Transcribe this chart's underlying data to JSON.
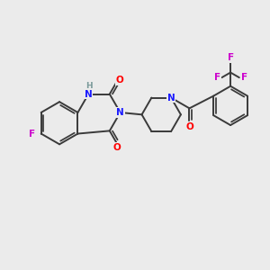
{
  "background_color": "#ebebeb",
  "bond_color": "#3a3a3a",
  "bond_width": 1.4,
  "atom_colors": {
    "N": "#1a1aff",
    "O": "#ff0000",
    "F": "#cc00cc",
    "H": "#7a9a9a"
  },
  "font_size": 7.5
}
